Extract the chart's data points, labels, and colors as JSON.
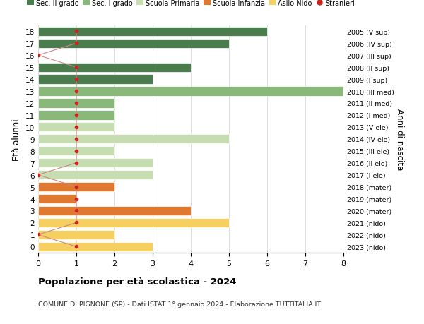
{
  "ages": [
    18,
    17,
    16,
    15,
    14,
    13,
    12,
    11,
    10,
    9,
    8,
    7,
    6,
    5,
    4,
    3,
    2,
    1,
    0
  ],
  "years": [
    "2005 (V sup)",
    "2006 (IV sup)",
    "2007 (III sup)",
    "2008 (II sup)",
    "2009 (I sup)",
    "2010 (III med)",
    "2011 (II med)",
    "2012 (I med)",
    "2013 (V ele)",
    "2014 (IV ele)",
    "2015 (III ele)",
    "2016 (II ele)",
    "2017 (I ele)",
    "2018 (mater)",
    "2019 (mater)",
    "2020 (mater)",
    "2021 (nido)",
    "2022 (nido)",
    "2023 (nido)"
  ],
  "bar_values": [
    6,
    5,
    0,
    4,
    3,
    8,
    2,
    2,
    2,
    5,
    2,
    3,
    3,
    2,
    1,
    4,
    5,
    2,
    3
  ],
  "bar_colors": [
    "#4a7c4e",
    "#4a7c4e",
    "#4a7c4e",
    "#4a7c4e",
    "#4a7c4e",
    "#8ab87a",
    "#8ab87a",
    "#8ab87a",
    "#c5ddb0",
    "#c5ddb0",
    "#c5ddb0",
    "#c5ddb0",
    "#c5ddb0",
    "#e07830",
    "#e07830",
    "#e07830",
    "#f5d060",
    "#f5d060",
    "#f5d060"
  ],
  "stranieri": [
    1,
    1,
    0,
    1,
    1,
    1,
    1,
    1,
    1,
    1,
    1,
    1,
    0,
    1,
    1,
    1,
    1,
    0,
    1
  ],
  "legend_labels": [
    "Sec. II grado",
    "Sec. I grado",
    "Scuola Primaria",
    "Scuola Infanzia",
    "Asilo Nido",
    "Stranieri"
  ],
  "legend_colors": [
    "#4a7c4e",
    "#8ab87a",
    "#c5ddb0",
    "#e07830",
    "#f5d060",
    "#cc2222"
  ],
  "ylabel": "Età alunni",
  "ylabel_right": "Anni di nascita",
  "title": "Popolazione per età scolastica - 2024",
  "subtitle": "COMUNE DI PIGNONE (SP) - Dati ISTAT 1° gennaio 2024 - Elaborazione TUTTITALIA.IT",
  "xlim": [
    0,
    8
  ],
  "stranieri_color": "#cc2222",
  "stranieri_line_color": "#cc8888",
  "bg_color": "#ffffff",
  "grid_color": "#dddddd"
}
